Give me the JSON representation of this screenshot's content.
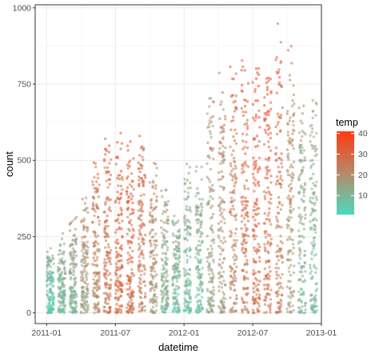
{
  "chart_data": {
    "type": "scatter",
    "xlabel": "datetime",
    "ylabel": "count",
    "x_ticks": [
      "2011-01",
      "2011-07",
      "2012-01",
      "2012-07",
      "2013-01"
    ],
    "x_range": [
      "2010-12-01",
      "2013-01-01"
    ],
    "y_ticks": [
      0,
      250,
      500,
      750,
      1000
    ],
    "ylim": [
      -35,
      1010
    ],
    "grid": true,
    "legend": {
      "title": "temp",
      "position": "right",
      "type": "continuous",
      "ticks": [
        10,
        20,
        30,
        40
      ],
      "range": [
        0.8,
        41
      ]
    },
    "colors": {
      "low": "#4cd9c0",
      "mid": "#b58a68",
      "high": "#ff3a10"
    },
    "point_alpha": 0.55,
    "point_count_approx": 10886,
    "clusters": [
      {
        "date": "2011-01",
        "count_max": 220,
        "temp_mean": 8
      },
      {
        "date": "2011-02",
        "count_max": 270,
        "temp_mean": 11
      },
      {
        "date": "2011-03",
        "count_max": 330,
        "temp_mean": 14
      },
      {
        "date": "2011-04",
        "count_max": 400,
        "temp_mean": 18
      },
      {
        "date": "2011-05",
        "count_max": 540,
        "temp_mean": 24
      },
      {
        "date": "2011-06",
        "count_max": 640,
        "temp_mean": 29
      },
      {
        "date": "2011-07",
        "count_max": 600,
        "temp_mean": 32
      },
      {
        "date": "2011-08",
        "count_max": 600,
        "temp_mean": 30
      },
      {
        "date": "2011-09",
        "count_max": 620,
        "temp_mean": 26
      },
      {
        "date": "2011-10",
        "count_max": 540,
        "temp_mean": 20
      },
      {
        "date": "2011-11",
        "count_max": 450,
        "temp_mean": 14
      },
      {
        "date": "2011-12",
        "count_max": 330,
        "temp_mean": 10
      },
      {
        "date": "2012-01",
        "count_max": 520,
        "temp_mean": 10
      },
      {
        "date": "2012-02",
        "count_max": 500,
        "temp_mean": 11
      },
      {
        "date": "2012-03",
        "count_max": 800,
        "temp_mean": 17
      },
      {
        "date": "2012-04",
        "count_max": 830,
        "temp_mean": 20
      },
      {
        "date": "2012-05",
        "count_max": 870,
        "temp_mean": 25
      },
      {
        "date": "2012-06",
        "count_max": 870,
        "temp_mean": 29
      },
      {
        "date": "2012-07",
        "count_max": 860,
        "temp_mean": 33
      },
      {
        "date": "2012-08",
        "count_max": 890,
        "temp_mean": 31
      },
      {
        "date": "2012-09",
        "count_max": 970,
        "temp_mean": 27
      },
      {
        "date": "2012-10",
        "count_max": 950,
        "temp_mean": 20
      },
      {
        "date": "2012-11",
        "count_max": 700,
        "temp_mean": 13
      },
      {
        "date": "2012-12",
        "count_max": 760,
        "temp_mean": 11
      }
    ]
  }
}
